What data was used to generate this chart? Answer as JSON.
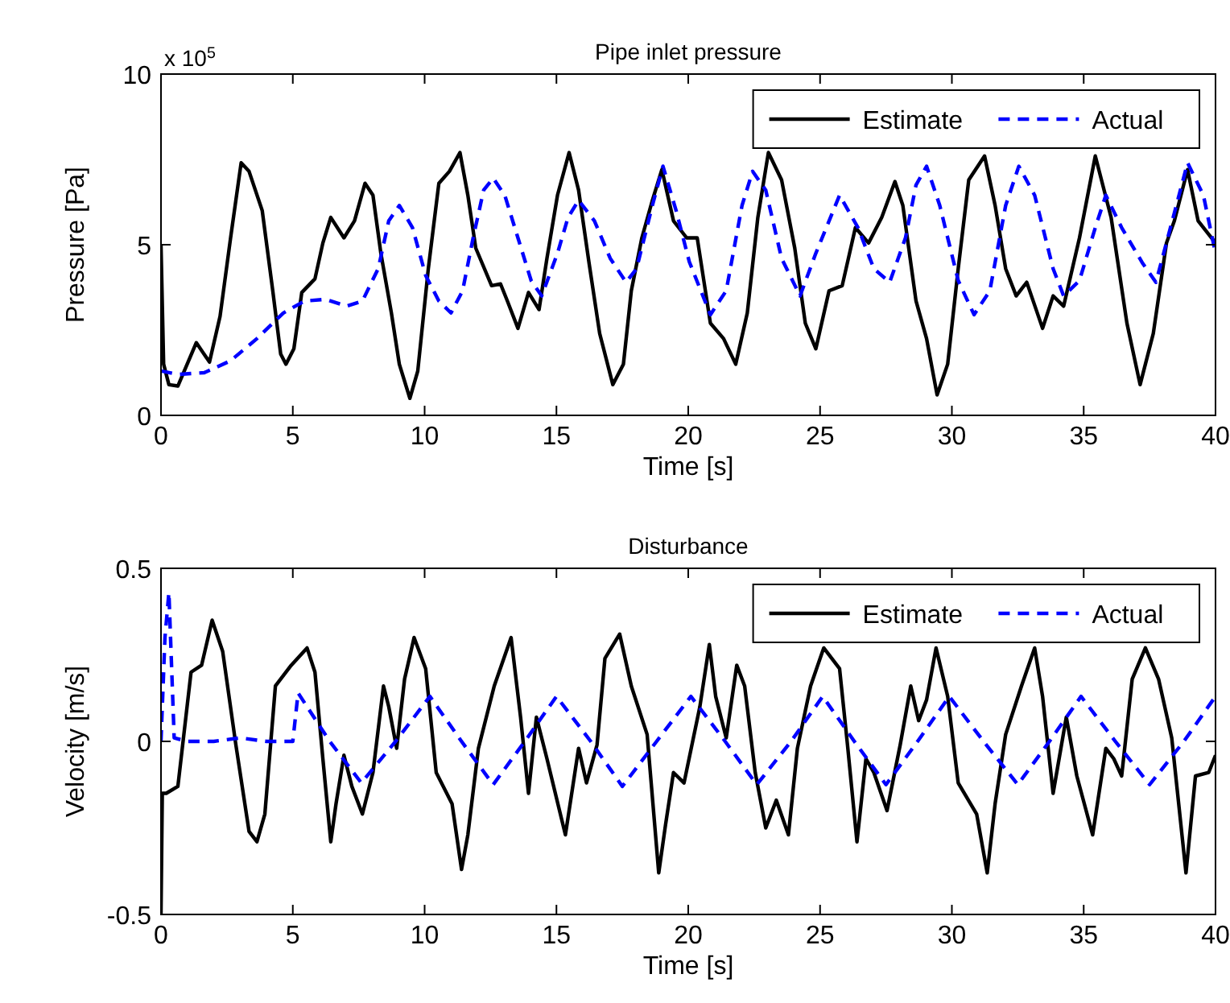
{
  "chart_data": [
    {
      "type": "line",
      "title": "Pipe inlet pressure",
      "xlabel": "Time [s]",
      "ylabel": "Pressure [Pa]",
      "annotations": [
        "x 10$^{5}$"
      ],
      "xlim": [
        0,
        40
      ],
      "xticks": [
        0,
        5,
        10,
        15,
        20,
        25,
        30,
        35,
        40
      ],
      "ylim": [
        0,
        10
      ],
      "yticks": [
        0,
        5,
        10
      ],
      "grid": false,
      "legend": "top right",
      "series": [
        {
          "name": "Estimate",
          "color": "#000000",
          "line_style": "solid",
          "x": [
            0,
            0.1,
            0.3,
            0.64,
            1.34,
            1.84,
            2.24,
            2.64,
            3.04,
            3.34,
            3.84,
            4.24,
            4.54,
            4.74,
            5.04,
            5.34,
            5.84,
            6.14,
            6.44,
            6.94,
            7.34,
            7.74,
            8.04,
            8.34,
            8.74,
            9.04,
            9.44,
            9.74,
            10.14,
            10.54,
            10.94,
            11.34,
            11.64,
            11.94,
            12.54,
            12.88,
            13.14,
            13.54,
            13.94,
            14.34,
            14.64,
            15.04,
            15.48,
            15.84,
            16.24,
            16.64,
            17.14,
            17.54,
            17.84,
            18.24,
            18.64,
            19.0,
            19.44,
            19.94,
            20.34,
            20.84,
            21.34,
            21.8,
            22.24,
            22.64,
            23.04,
            23.54,
            24.04,
            24.44,
            24.84,
            25.34,
            25.84,
            26.34,
            26.84,
            27.34,
            27.84,
            28.14,
            28.64,
            29.04,
            29.44,
            29.84,
            30.24,
            30.64,
            31.24,
            31.64,
            32.04,
            32.44,
            32.84,
            33.44,
            33.84,
            34.24,
            34.84,
            35.44,
            36.04,
            36.64,
            37.14,
            37.64,
            38.14,
            38.44,
            38.94,
            39.34,
            40
          ],
          "values": [
            5,
            1.5,
            0.9,
            0.86,
            2.13,
            1.56,
            2.9,
            5.2,
            7.4,
            7.15,
            6.0,
            3.65,
            1.8,
            1.5,
            1.95,
            3.6,
            4.0,
            5.05,
            5.8,
            5.2,
            5.7,
            6.8,
            6.45,
            4.75,
            3.0,
            1.5,
            0.5,
            1.3,
            4.3,
            6.8,
            7.15,
            7.7,
            6.45,
            4.9,
            3.8,
            3.85,
            3.35,
            2.55,
            3.6,
            3.1,
            4.6,
            6.45,
            7.7,
            6.6,
            4.45,
            2.4,
            0.9,
            1.5,
            3.65,
            5.2,
            6.3,
            7.2,
            5.7,
            5.2,
            5.2,
            2.7,
            2.25,
            1.5,
            3.0,
            5.8,
            7.7,
            6.9,
            4.9,
            2.7,
            1.95,
            3.65,
            3.8,
            5.5,
            5.05,
            5.8,
            6.85,
            6.15,
            3.35,
            2.25,
            0.6,
            1.5,
            4.3,
            6.9,
            7.6,
            6.15,
            4.3,
            3.5,
            3.9,
            2.55,
            3.5,
            3.2,
            5.2,
            7.6,
            5.8,
            2.7,
            0.9,
            2.4,
            5.05,
            5.7,
            7.2,
            5.7,
            5.05
          ]
        },
        {
          "name": "Actual",
          "color": "#0000ff",
          "line_style": "dashed",
          "x": [
            0,
            0.64,
            1.64,
            2.64,
            3.64,
            4.64,
            5.44,
            6.24,
            7.04,
            7.64,
            8.24,
            8.64,
            9.04,
            9.54,
            10.04,
            10.54,
            11.0,
            11.44,
            11.84,
            12.24,
            12.6,
            13.04,
            13.54,
            14.04,
            14.44,
            15.04,
            15.44,
            15.84,
            16.44,
            17.04,
            17.64,
            18.04,
            18.64,
            19.04,
            19.54,
            20.04,
            20.84,
            21.44,
            22.04,
            22.44,
            22.94,
            23.54,
            24.24,
            24.84,
            25.74,
            26.44,
            27.04,
            27.64,
            28.24,
            28.64,
            29.04,
            29.54,
            30.24,
            30.84,
            31.44,
            32.04,
            32.54,
            33.14,
            33.84,
            34.24,
            34.84,
            35.44,
            35.84,
            36.44,
            37.24,
            37.74,
            38.24,
            38.94,
            39.54,
            40
          ],
          "values": [
            1.3,
            1.2,
            1.25,
            1.6,
            2.25,
            3.0,
            3.35,
            3.4,
            3.2,
            3.35,
            4.3,
            5.7,
            6.15,
            5.5,
            4.1,
            3.35,
            3.0,
            3.65,
            5.2,
            6.6,
            6.95,
            6.45,
            5.2,
            3.95,
            3.5,
            4.75,
            5.8,
            6.3,
            5.7,
            4.6,
            3.9,
            4.3,
            6.15,
            7.3,
            6.0,
            4.5,
            2.95,
            3.65,
            6.15,
            7.15,
            6.6,
            4.6,
            3.5,
            4.75,
            6.45,
            5.5,
            4.3,
            3.9,
            5.2,
            6.75,
            7.3,
            6.15,
            3.95,
            2.95,
            3.65,
            6.15,
            7.3,
            6.45,
            4.3,
            3.5,
            3.95,
            5.5,
            6.45,
            5.5,
            4.45,
            3.9,
            5.35,
            7.4,
            6.45,
            4.75
          ]
        }
      ]
    },
    {
      "type": "line",
      "title": "Disturbance",
      "xlabel": "Time [s]",
      "ylabel": "Velocity [m/s]",
      "xlim": [
        0,
        40
      ],
      "xticks": [
        0,
        5,
        10,
        15,
        20,
        25,
        30,
        35,
        40
      ],
      "ylim": [
        -0.5,
        0.5
      ],
      "yticks": [
        -0.5,
        0,
        0.5
      ],
      "grid": false,
      "legend": "top right",
      "series": [
        {
          "name": "Estimate",
          "color": "#000000",
          "line_style": "solid",
          "x": [
            0,
            0.05,
            0.2,
            0.64,
            1.14,
            1.54,
            1.94,
            2.34,
            2.84,
            3.34,
            3.64,
            3.94,
            4.34,
            4.94,
            5.54,
            5.84,
            6.14,
            6.44,
            6.64,
            6.94,
            7.24,
            7.64,
            8.04,
            8.44,
            8.64,
            8.94,
            9.24,
            9.6,
            10.04,
            10.44,
            11.04,
            11.4,
            11.64,
            12.04,
            12.64,
            13.28,
            13.64,
            13.94,
            14.24,
            14.64,
            15.34,
            15.84,
            16.14,
            16.54,
            16.84,
            17.4,
            17.84,
            18.44,
            18.88,
            19.14,
            19.44,
            19.84,
            20.44,
            20.8,
            21.04,
            21.44,
            21.84,
            22.14,
            22.54,
            22.94,
            23.34,
            23.8,
            24.14,
            24.64,
            25.14,
            25.74,
            26.04,
            26.4,
            26.74,
            27.04,
            27.54,
            28.04,
            28.44,
            28.74,
            29.04,
            29.4,
            29.84,
            30.24,
            30.94,
            31.34,
            31.64,
            32.04,
            32.64,
            33.14,
            33.44,
            33.84,
            34.34,
            34.74,
            35.34,
            35.84,
            36.14,
            36.44,
            36.84,
            37.34,
            37.84,
            38.34,
            38.88,
            39.24,
            39.74,
            40
          ],
          "values": [
            -0.5,
            -0.15,
            -0.15,
            -0.13,
            0.2,
            0.22,
            0.35,
            0.26,
            -0.01,
            -0.26,
            -0.29,
            -0.21,
            0.16,
            0.22,
            0.27,
            0.2,
            -0.05,
            -0.29,
            -0.18,
            -0.04,
            -0.13,
            -0.21,
            -0.09,
            0.16,
            0.1,
            -0.02,
            0.18,
            0.3,
            0.21,
            -0.09,
            -0.18,
            -0.37,
            -0.27,
            -0.02,
            0.16,
            0.3,
            0.07,
            -0.15,
            0.07,
            -0.05,
            -0.27,
            -0.02,
            -0.12,
            -0.01,
            0.24,
            0.31,
            0.16,
            0.02,
            -0.38,
            -0.24,
            -0.09,
            -0.12,
            0.1,
            0.28,
            0.13,
            0.01,
            0.22,
            0.16,
            -0.09,
            -0.25,
            -0.17,
            -0.27,
            -0.02,
            0.16,
            0.27,
            0.21,
            -0.01,
            -0.29,
            -0.05,
            -0.09,
            -0.2,
            -0.01,
            0.16,
            0.06,
            0.12,
            0.27,
            0.13,
            -0.12,
            -0.21,
            -0.38,
            -0.18,
            0.02,
            0.16,
            0.27,
            0.13,
            -0.15,
            0.07,
            -0.1,
            -0.27,
            -0.02,
            -0.05,
            -0.1,
            0.18,
            0.27,
            0.18,
            0.01,
            -0.38,
            -0.1,
            -0.09,
            -0.04
          ]
        },
        {
          "name": "Actual",
          "color": "#0000ff",
          "line_style": "dashed",
          "x": [
            0,
            0.15,
            0.3,
            0.5,
            1,
            2,
            3,
            4,
            5,
            5.2,
            6.4,
            7.6,
            8.9,
            10.2,
            11.4,
            12.6,
            13.8,
            15.0,
            16.3,
            17.5,
            18.8,
            20.1,
            21.4,
            22.6,
            23.9,
            25.1,
            26.3,
            27.5,
            28.7,
            29.9,
            31.2,
            32.5,
            33.7,
            34.9,
            36.2,
            37.5,
            38.8,
            40
          ],
          "values": [
            0,
            0.3,
            0.43,
            0.01,
            0,
            0,
            0.01,
            0,
            0,
            0.14,
            0,
            -0.12,
            0,
            0.13,
            0,
            -0.125,
            0,
            0.13,
            0,
            -0.13,
            0,
            0.13,
            0,
            -0.125,
            0,
            0.13,
            0,
            -0.125,
            0,
            0.13,
            0,
            -0.125,
            0,
            0.13,
            0,
            -0.125,
            0,
            0.13
          ]
        }
      ]
    }
  ]
}
